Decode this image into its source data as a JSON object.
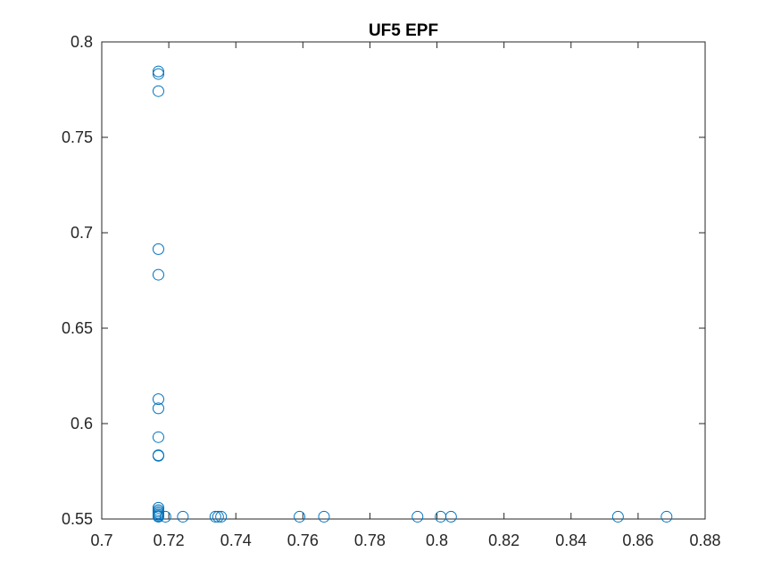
{
  "chart_data": {
    "type": "scatter",
    "title": "UF5 EPF",
    "xlabel": "",
    "ylabel": "",
    "xlim": [
      0.7,
      0.88
    ],
    "ylim": [
      0.55,
      0.8
    ],
    "xticks": [
      "0.7",
      "0.72",
      "0.74",
      "0.76",
      "0.78",
      "0.8",
      "0.82",
      "0.84",
      "0.86",
      "0.88"
    ],
    "yticks": [
      "0.55",
      "0.6",
      "0.65",
      "0.7",
      "0.75",
      "0.8"
    ],
    "grid": false,
    "legend": false,
    "marker": "open-circle",
    "color": "#0072BD",
    "points": [
      [
        0.7169,
        0.7845
      ],
      [
        0.7169,
        0.7832
      ],
      [
        0.7169,
        0.7742
      ],
      [
        0.7169,
        0.6914
      ],
      [
        0.7169,
        0.678
      ],
      [
        0.7169,
        0.6128
      ],
      [
        0.7169,
        0.608
      ],
      [
        0.7169,
        0.5929
      ],
      [
        0.7169,
        0.5834
      ],
      [
        0.7169,
        0.5831
      ],
      [
        0.7169,
        0.5559
      ],
      [
        0.7169,
        0.5547
      ],
      [
        0.7169,
        0.5538
      ],
      [
        0.7169,
        0.553
      ],
      [
        0.7169,
        0.5522
      ],
      [
        0.7169,
        0.5516
      ],
      [
        0.7169,
        0.5512
      ],
      [
        0.719,
        0.5512
      ],
      [
        0.7242,
        0.5512
      ],
      [
        0.7339,
        0.5512
      ],
      [
        0.7347,
        0.5512
      ],
      [
        0.7356,
        0.5512
      ],
      [
        0.759,
        0.5512
      ],
      [
        0.7663,
        0.5512
      ],
      [
        0.7942,
        0.5512
      ],
      [
        0.8011,
        0.5512
      ],
      [
        0.8042,
        0.5512
      ],
      [
        0.854,
        0.5512
      ],
      [
        0.8685,
        0.5512
      ]
    ]
  }
}
